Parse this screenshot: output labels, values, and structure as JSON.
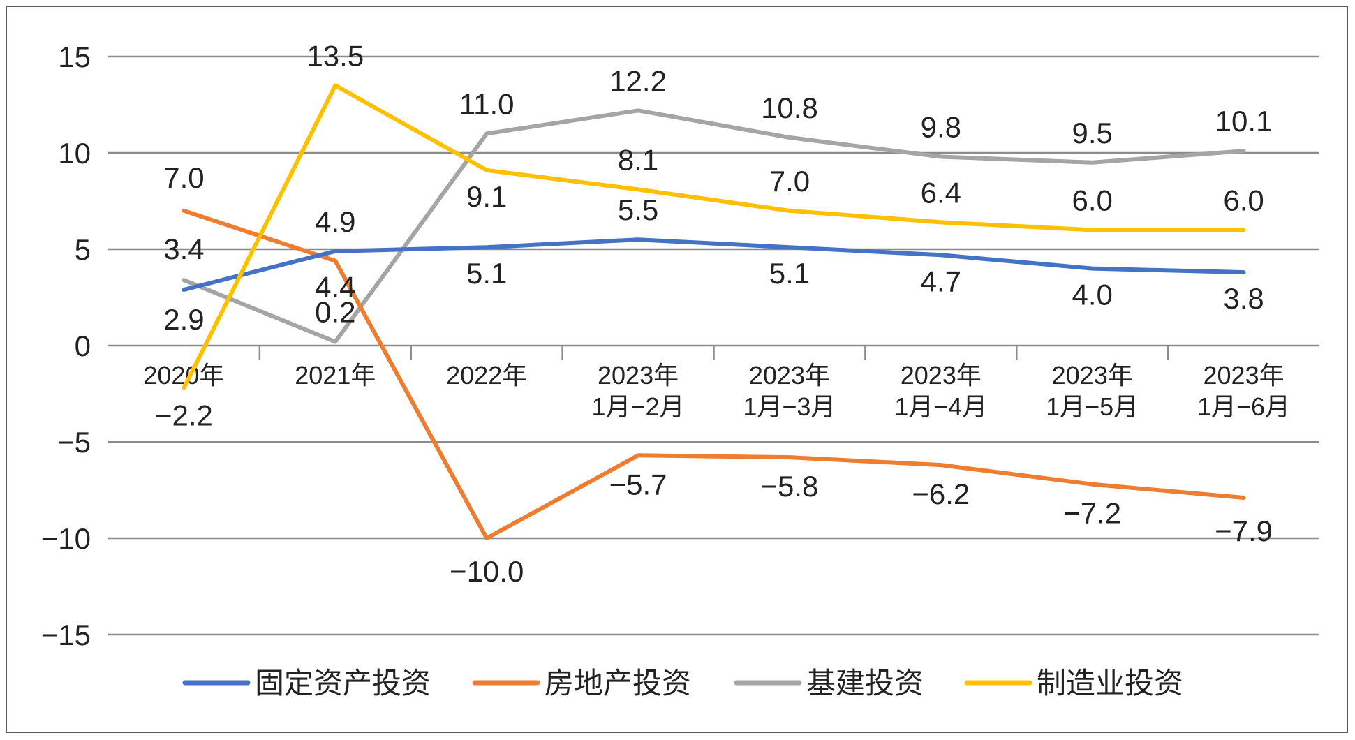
{
  "chart_data": {
    "type": "line",
    "categories": [
      [
        "2020年"
      ],
      [
        "2021年"
      ],
      [
        "2022年"
      ],
      [
        "2023年",
        "1月−2月"
      ],
      [
        "2023年",
        "1月−3月"
      ],
      [
        "2023年",
        "1月−4月"
      ],
      [
        "2023年",
        "1月−5月"
      ],
      [
        "2023年",
        "1月−6月"
      ]
    ],
    "ylim": [
      -15,
      15
    ],
    "yticks": [
      "15",
      "10",
      "5",
      "0",
      "−5",
      "−10",
      "−15"
    ],
    "ytick_values": [
      15,
      10,
      5,
      0,
      -5,
      -10,
      -15
    ],
    "grid": true,
    "legend_position": "bottom",
    "series": [
      {
        "name": "固定资产投资",
        "color": "#4472C4",
        "values": [
          2.9,
          4.9,
          5.1,
          5.5,
          5.1,
          4.7,
          4.0,
          3.8
        ],
        "labels": [
          "2.9",
          "4.9",
          "5.1",
          "5.5",
          "5.1",
          "4.7",
          "4.0",
          "3.8"
        ]
      },
      {
        "name": "房地产投资",
        "color": "#ED7D31",
        "values": [
          7.0,
          4.4,
          -10.0,
          -5.7,
          -5.8,
          -6.2,
          -7.2,
          -7.9
        ],
        "labels": [
          "7.0",
          "4.4",
          "−10.0",
          "−5.7",
          "−5.8",
          "−6.2",
          "−7.2",
          "−7.9"
        ]
      },
      {
        "name": "基建投资",
        "color": "#A5A5A5",
        "values": [
          3.4,
          0.2,
          11.0,
          12.2,
          10.8,
          9.8,
          9.5,
          10.1
        ],
        "labels": [
          "3.4",
          "0.2",
          "11.0",
          "12.2",
          "10.8",
          "9.8",
          "9.5",
          "10.1"
        ]
      },
      {
        "name": "制造业投资",
        "color": "#FFC000",
        "values": [
          -2.2,
          13.5,
          9.1,
          8.1,
          7.0,
          6.4,
          6.0,
          6.0
        ],
        "labels": [
          "−2.2",
          "13.5",
          "9.1",
          "8.1",
          "7.0",
          "6.4",
          "6.0",
          "6.0"
        ]
      }
    ]
  }
}
